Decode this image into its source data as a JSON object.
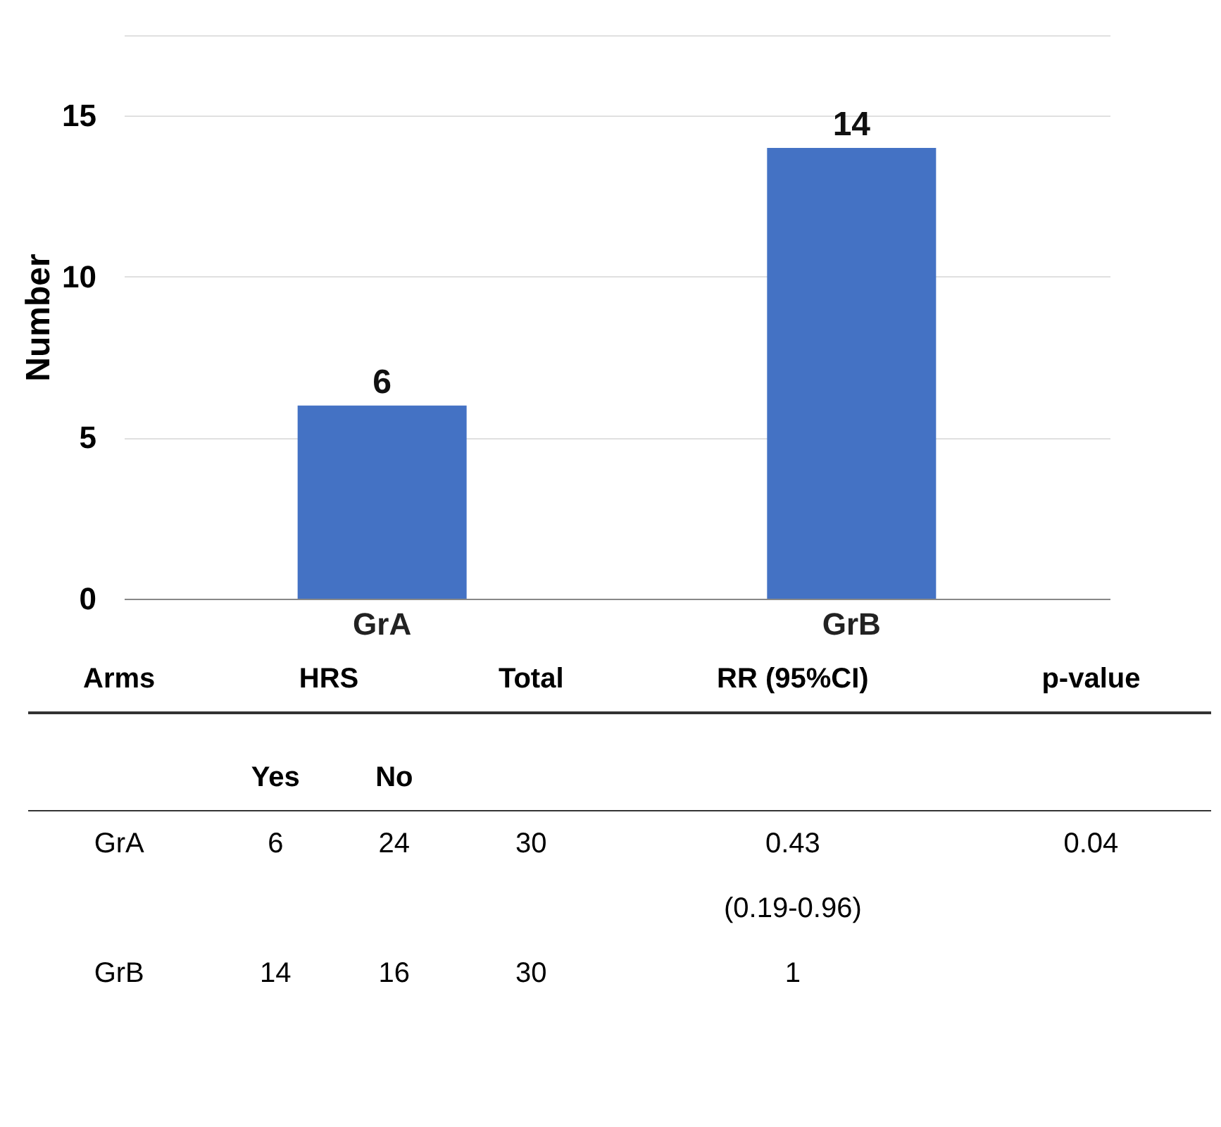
{
  "chart_data": {
    "type": "bar",
    "ylabel": "Number",
    "categories": [
      "GrA",
      "GrB"
    ],
    "values": [
      6,
      14
    ],
    "color": "#4472c4",
    "ylim": [
      0,
      17.5
    ],
    "yticks": [
      0,
      5,
      10,
      15,
      {
        "value": 17.5,
        "label": null
      }
    ],
    "grid": "y",
    "data_labels": true,
    "annotations": [
      "Arms",
      "HRS",
      "Total",
      "RR (95%CI)",
      "p-value",
      "Yes",
      "No",
      "GrA",
      "6",
      "24",
      "30",
      "0.43",
      "0.04",
      "(0.19-0.96)",
      "GrB",
      "14",
      "16",
      "30",
      "1"
    ]
  }
}
